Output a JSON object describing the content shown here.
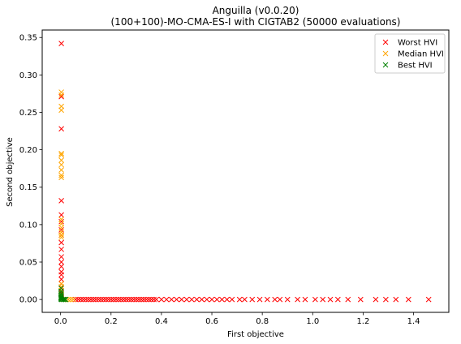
{
  "chart_data": {
    "type": "scatter",
    "title": "Anguilla (v0.0.20)",
    "subtitle": "(100+100)-MO-CMA-ES-I with CIGTAB2 (50000 evaluations)",
    "xlabel": "First objective",
    "ylabel": "Second objective",
    "xlim": [
      -0.073,
      1.54
    ],
    "ylim": [
      -0.0172,
      0.36
    ],
    "xticks": [
      0.0,
      0.2,
      0.4,
      0.6,
      0.8,
      1.0,
      1.2,
      1.4
    ],
    "xtick_labels": [
      "0.0",
      "0.2",
      "0.4",
      "0.6",
      "0.8",
      "1.0",
      "1.2",
      "1.4"
    ],
    "yticks": [
      0.0,
      0.05,
      0.1,
      0.15,
      0.2,
      0.25,
      0.3,
      0.35
    ],
    "ytick_labels": [
      "0.00",
      "0.05",
      "0.10",
      "0.15",
      "0.20",
      "0.25",
      "0.30",
      "0.35"
    ],
    "grid": false,
    "legend_position": "top-right",
    "marker": "x",
    "series": [
      {
        "name": "Worst HVI",
        "color": "#ff0000",
        "x": [
          0.003,
          0.003,
          0.003,
          0.003,
          0.003,
          0.003,
          0.003,
          0.003,
          0.003,
          0.003,
          0.003,
          0.003,
          0.003,
          0.003,
          0.003,
          0.003,
          0.003,
          0.003,
          0.003,
          0.003,
          0.003,
          0.06,
          0.07,
          0.08,
          0.09,
          0.1,
          0.11,
          0.12,
          0.13,
          0.14,
          0.15,
          0.16,
          0.17,
          0.18,
          0.19,
          0.2,
          0.21,
          0.22,
          0.23,
          0.24,
          0.25,
          0.26,
          0.27,
          0.28,
          0.29,
          0.3,
          0.31,
          0.32,
          0.33,
          0.34,
          0.35,
          0.36,
          0.37,
          0.38,
          0.4,
          0.42,
          0.44,
          0.46,
          0.48,
          0.5,
          0.52,
          0.54,
          0.56,
          0.58,
          0.6,
          0.62,
          0.64,
          0.66,
          0.68,
          0.71,
          0.73,
          0.76,
          0.79,
          0.82,
          0.85,
          0.87,
          0.9,
          0.94,
          0.97,
          1.01,
          1.04,
          1.07,
          1.1,
          1.14,
          1.19,
          1.25,
          1.29,
          1.33,
          1.38,
          1.46
        ],
        "y": [
          0.342,
          0.271,
          0.228,
          0.132,
          0.113,
          0.104,
          0.093,
          0.086,
          0.076,
          0.067,
          0.057,
          0.05,
          0.044,
          0.037,
          0.033,
          0.027,
          0.021,
          0.015,
          0.009,
          0.004,
          0.001,
          0.0,
          0.0,
          0.0,
          0.0,
          0.0,
          0.0,
          0.0,
          0.0,
          0.0,
          0.0,
          0.0,
          0.0,
          0.0,
          0.0,
          0.0,
          0.0,
          0.0,
          0.0,
          0.0,
          0.0,
          0.0,
          0.0,
          0.0,
          0.0,
          0.0,
          0.0,
          0.0,
          0.0,
          0.0,
          0.0,
          0.0,
          0.0,
          0.0,
          0.0,
          0.0,
          0.0,
          0.0,
          0.0,
          0.0,
          0.0,
          0.0,
          0.0,
          0.0,
          0.0,
          0.0,
          0.0,
          0.0,
          0.0,
          0.0,
          0.0,
          0.0,
          0.0,
          0.0,
          0.0,
          0.0,
          0.0,
          0.0,
          0.0,
          0.0,
          0.0,
          0.0,
          0.0,
          0.0,
          0.0,
          0.0,
          0.0,
          0.0,
          0.0,
          0.0
        ]
      },
      {
        "name": "Median HVI",
        "color": "#ffa500",
        "x": [
          0.003,
          0.003,
          0.003,
          0.003,
          0.003,
          0.003,
          0.003,
          0.003,
          0.003,
          0.003,
          0.003,
          0.003,
          0.003,
          0.003,
          0.003,
          0.003,
          0.003,
          0.003,
          0.003,
          0.003,
          0.003,
          0.003,
          0.003,
          0.01,
          0.02,
          0.03,
          0.04,
          0.05
        ],
        "y": [
          0.277,
          0.273,
          0.258,
          0.253,
          0.195,
          0.193,
          0.186,
          0.18,
          0.173,
          0.166,
          0.163,
          0.107,
          0.101,
          0.096,
          0.09,
          0.086,
          0.083,
          0.021,
          0.017,
          0.012,
          0.007,
          0.004,
          0.002,
          0.0,
          0.0,
          0.0,
          0.0,
          0.0
        ]
      },
      {
        "name": "Best HVI",
        "color": "#008000",
        "x": [
          0.002,
          0.002,
          0.002,
          0.002,
          0.002,
          0.002,
          0.002,
          0.002,
          0.002,
          0.005,
          0.01,
          0.015,
          0.02
        ],
        "y": [
          0.015,
          0.011,
          0.008,
          0.006,
          0.004,
          0.003,
          0.002,
          0.001,
          0.0005,
          0.0,
          0.0,
          0.0,
          0.0
        ]
      }
    ]
  }
}
